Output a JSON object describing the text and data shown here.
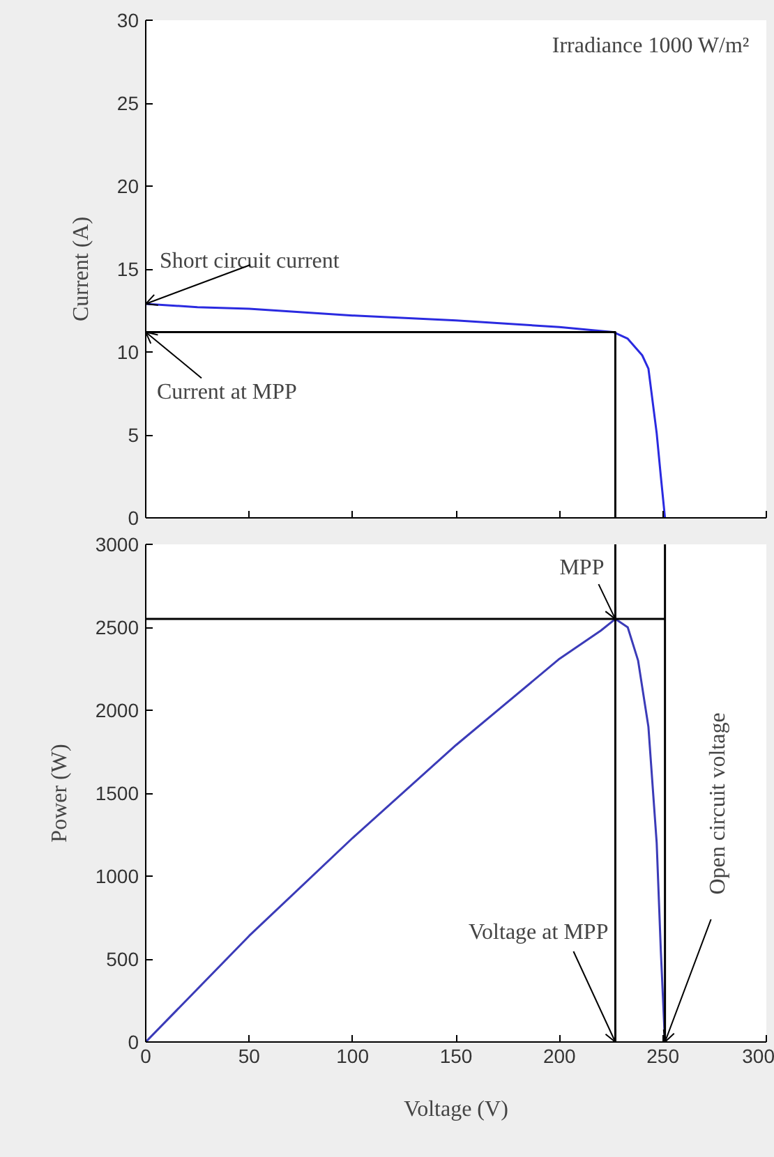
{
  "chart_data": [
    {
      "type": "line",
      "ylabel": "Current (A)",
      "xlim": [
        0,
        300
      ],
      "ylim": [
        0,
        30
      ],
      "xticks": [
        {
          "value": 0,
          "label": null
        },
        {
          "value": 50,
          "label": null
        },
        {
          "value": 100,
          "label": null
        },
        {
          "value": 150,
          "label": null
        },
        {
          "value": 200,
          "label": null
        },
        {
          "value": 250,
          "label": null
        },
        {
          "value": 300,
          "label": null
        }
      ],
      "yticks": [
        0,
        5,
        10,
        15,
        20,
        25,
        30
      ],
      "tick_labels": "y",
      "series": [
        {
          "color": "#2a2ae0",
          "x": [
            0,
            25,
            50,
            100,
            150,
            200,
            226,
            233,
            240,
            243,
            247,
            249,
            251
          ],
          "values": [
            12.9,
            12.7,
            12.6,
            12.2,
            11.9,
            11.5,
            11.2,
            10.8,
            9.8,
            9.0,
            5.1,
            2.5,
            0
          ]
        },
        {
          "color": "#000000",
          "x": [
            0,
            227,
            227
          ],
          "values": [
            11.2,
            11.2,
            0
          ]
        }
      ],
      "annotations": [
        "Irradiance 1000 W/m²",
        {
          "text": "Short circuit current",
          "x": 0,
          "y": 12.9
        },
        {
          "text": "Current at MPP",
          "x": 0,
          "y": 11.2
        }
      ]
    },
    {
      "type": "line",
      "xlabel": "Voltage (V)",
      "ylabel": "Power (W)",
      "xlim": [
        0,
        300
      ],
      "ylim": [
        0,
        3000
      ],
      "xticks": [
        0,
        50,
        100,
        150,
        200,
        250,
        300
      ],
      "yticks": [
        0,
        500,
        1000,
        1500,
        2000,
        2500,
        3000
      ],
      "series": [
        {
          "color": "#3b3bb8",
          "x": [
            0,
            50,
            100,
            150,
            200,
            220,
            227,
            233,
            238,
            243,
            247,
            249,
            251
          ],
          "values": [
            0,
            640,
            1230,
            1790,
            2310,
            2480,
            2550,
            2500,
            2300,
            1900,
            1200,
            550,
            0
          ]
        },
        {
          "color": "#000000",
          "x": [
            0,
            251
          ],
          "values": [
            2550,
            2550
          ]
        }
      ],
      "ref_lines": [
        {
          "axis": "x",
          "value": 227,
          "label": null,
          "color": "#000000"
        },
        {
          "axis": "x",
          "value": 251,
          "label": null,
          "color": "#000000"
        }
      ],
      "annotations": [
        {
          "text": "MPP",
          "x": 227,
          "y": 2550
        },
        {
          "text": "Voltage at MPP",
          "x": 227,
          "y": 0
        },
        {
          "text": "Open circuit voltage",
          "x": 251,
          "y": 0
        }
      ]
    }
  ]
}
